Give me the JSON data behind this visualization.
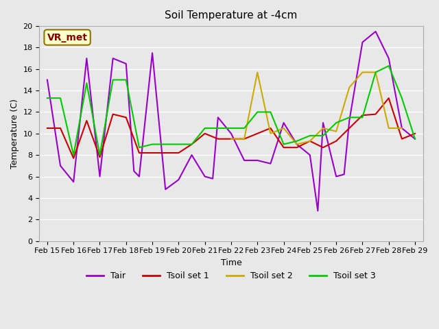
{
  "title": "Soil Temperature at -4cm",
  "xlabel": "Time",
  "ylabel": "Temperature (C)",
  "ylim": [
    0,
    20
  ],
  "annotation_text": "VR_met",
  "annotation_bg": "#ffffcc",
  "annotation_border": "#8b7500",
  "annotation_text_color": "#8b0000",
  "xtick_labels": [
    "Feb 15",
    "Feb 16",
    "Feb 17",
    "Feb 18",
    "Feb 19",
    "Feb 20",
    "Feb 21",
    "Feb 22",
    "Feb 23",
    "Feb 24",
    "Feb 25",
    "Feb 26",
    "Feb 27",
    "Feb 28",
    "Feb 29"
  ],
  "legend_entries": [
    "Tair",
    "Tsoil set 1",
    "Tsoil set 2",
    "Tsoil set 3"
  ],
  "legend_colors": [
    "#9900cc",
    "#cc0000",
    "#ccaa00",
    "#00cc00"
  ],
  "tair_x": [
    0,
    0.5,
    1,
    1.5,
    2,
    2.5,
    3,
    3.3,
    3.5,
    4,
    4.5,
    5,
    5.5,
    6,
    6.3,
    6.5,
    7,
    7.5,
    8,
    8.5,
    9,
    9.5,
    10,
    10.3,
    10.5,
    11,
    11.3,
    11.5,
    12,
    12.5,
    13,
    13.5,
    14
  ],
  "tair_y": [
    15.0,
    7.0,
    5.5,
    17.0,
    6.0,
    17.0,
    16.5,
    6.5,
    6.0,
    17.5,
    4.8,
    5.7,
    8.0,
    6.0,
    5.8,
    11.5,
    10.0,
    7.5,
    7.5,
    7.2,
    11.0,
    9.0,
    8.0,
    2.8,
    11.0,
    6.0,
    6.2,
    11.2,
    18.5,
    19.5,
    17.0,
    10.5,
    9.5
  ],
  "tsoil1_x": [
    0,
    0.5,
    1,
    1.5,
    2,
    2.5,
    3,
    3.5,
    4,
    4.5,
    5,
    5.5,
    6,
    6.5,
    7,
    7.5,
    8,
    8.5,
    9,
    9.5,
    10,
    10.5,
    11,
    11.5,
    12,
    12.5,
    13,
    13.5,
    14
  ],
  "tsoil1_y": [
    10.5,
    10.5,
    7.7,
    11.2,
    7.8,
    11.8,
    11.5,
    8.2,
    8.2,
    8.2,
    8.2,
    9.0,
    10.0,
    9.5,
    9.5,
    9.5,
    10.0,
    10.5,
    8.7,
    8.7,
    9.3,
    8.7,
    9.3,
    10.5,
    11.7,
    11.8,
    13.3,
    9.5,
    10.0
  ],
  "tsoil2_x": [
    7,
    7.5,
    8,
    8.5,
    9,
    9.5,
    10,
    10.5,
    11,
    11.5,
    12,
    12.5,
    13,
    13.5
  ],
  "tsoil2_y": [
    9.5,
    9.5,
    15.7,
    10.0,
    10.5,
    9.0,
    9.3,
    10.5,
    10.2,
    14.3,
    15.7,
    15.7,
    10.5,
    10.5
  ],
  "tsoil3_x": [
    0,
    0.5,
    1,
    1.5,
    2,
    2.5,
    3,
    3.5,
    4,
    4.5,
    5,
    5.5,
    6,
    6.5,
    7,
    7.5,
    8,
    8.5,
    9,
    9.5,
    10,
    10.5,
    11,
    11.5,
    12,
    12.5,
    13,
    13.5,
    14
  ],
  "tsoil3_y": [
    13.3,
    13.3,
    8.0,
    14.7,
    8.0,
    15.0,
    15.0,
    8.7,
    9.0,
    9.0,
    9.0,
    9.0,
    10.5,
    10.5,
    10.5,
    10.5,
    12.0,
    12.0,
    9.0,
    9.3,
    9.8,
    9.8,
    11.0,
    11.5,
    11.5,
    15.7,
    16.3,
    13.3,
    9.5
  ]
}
